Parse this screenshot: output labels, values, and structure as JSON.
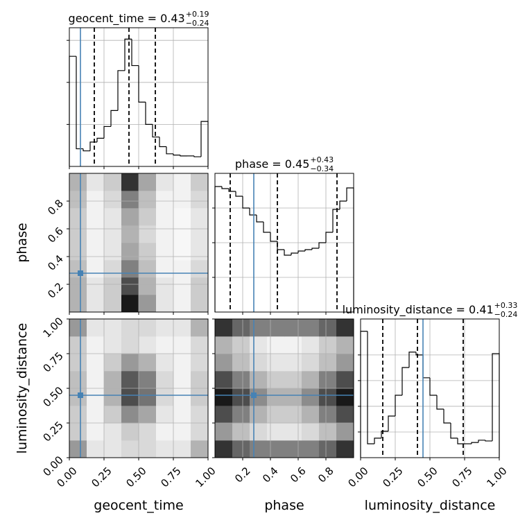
{
  "chart_data": {
    "type": "corner",
    "truth_color": "#4682b4",
    "grid": true,
    "parameters": [
      {
        "name": "geocent_time",
        "title": "geocent_time = 0.43",
        "plus": "+0.19",
        "minus": "−0.24",
        "lim": [
          0,
          1
        ],
        "ticks": [
          {
            "value": 0,
            "label": "0.00"
          },
          {
            "value": 0.25,
            "label": "0.25"
          },
          {
            "value": 0.5,
            "label": "0.50"
          },
          {
            "value": 0.75,
            "label": "0.75"
          },
          {
            "value": 1,
            "label": "1.00"
          }
        ],
        "truth": 0.08,
        "quantiles": [
          0.18,
          0.43,
          0.62
        ],
        "hist": {
          "values": [
            2.62,
            0.42,
            0.37,
            0.58,
            0.67,
            0.95,
            1.33,
            2.28,
            3.03,
            2.4,
            1.53,
            1.0,
            0.7,
            0.47,
            0.3,
            0.27,
            0.25,
            0.25,
            0.23,
            1.07
          ],
          "ylim": [
            0,
            3.3
          ],
          "yticks": [
            1,
            2,
            3
          ]
        }
      },
      {
        "name": "phase",
        "title": "phase = 0.45",
        "plus": "+0.43",
        "minus": "−0.34",
        "lim": [
          0,
          1
        ],
        "ticks": [
          0.2,
          0.4,
          0.6,
          0.8
        ],
        "truth": 0.28,
        "quantiles": [
          0.11,
          0.45,
          0.88
        ],
        "hist": {
          "values": [
            3.62,
            3.56,
            3.48,
            3.34,
            3.0,
            2.8,
            2.6,
            2.3,
            2.04,
            1.8,
            1.64,
            1.7,
            1.76,
            1.8,
            1.84,
            2.0,
            2.3,
            2.96,
            3.2,
            3.58
          ],
          "ylim": [
            0,
            4.0
          ],
          "yticks": [
            1,
            2,
            3
          ]
        }
      },
      {
        "name": "luminosity_distance",
        "title": "luminosity_distance = 0.41",
        "plus": "+0.33",
        "minus": "−0.24",
        "lim": [
          0,
          1
        ],
        "ticks": [
          {
            "value": 0,
            "label": "0.00"
          },
          {
            "value": 0.25,
            "label": "0.25"
          },
          {
            "value": 0.5,
            "label": "0.50"
          },
          {
            "value": 0.75,
            "label": "0.75"
          },
          {
            "value": 1,
            "label": "1.00"
          }
        ],
        "truth": 0.45,
        "quantiles": [
          0.16,
          0.41,
          0.74
        ],
        "hist": {
          "values": [
            4.92,
            0.54,
            0.76,
            1.03,
            1.62,
            2.43,
            3.51,
            4.11,
            4.0,
            3.11,
            2.43,
            1.89,
            1.35,
            0.76,
            0.54,
            0.54,
            0.59,
            0.68,
            0.65,
            4.05
          ],
          "ylim": [
            0,
            5.4
          ],
          "yticks": [
            1,
            2,
            3,
            4
          ]
        }
      }
    ],
    "pairs": [
      {
        "density": [
          [
            0.3,
            0.1,
            0.2,
            0.9,
            0.4,
            0.1,
            0.05,
            0.2
          ],
          [
            0.3,
            0.1,
            0.2,
            0.7,
            0.3,
            0.1,
            0.05,
            0.2
          ],
          [
            0.25,
            0.05,
            0.15,
            0.5,
            0.25,
            0.05,
            0.05,
            0.15
          ],
          [
            0.2,
            0.05,
            0.1,
            0.35,
            0.2,
            0.05,
            0.03,
            0.1
          ],
          [
            0.2,
            0.05,
            0.1,
            0.3,
            0.15,
            0.05,
            0.03,
            0.1
          ],
          [
            0.2,
            0.05,
            0.1,
            0.35,
            0.2,
            0.05,
            0.03,
            0.1
          ],
          [
            0.25,
            0.05,
            0.15,
            0.5,
            0.25,
            0.05,
            0.05,
            0.15
          ],
          [
            0.3,
            0.1,
            0.2,
            0.8,
            0.35,
            0.1,
            0.05,
            0.2
          ]
        ]
      },
      {
        "density": [
          [
            0.4,
            0.1,
            0.1,
            0.15,
            0.15,
            0.1,
            0.1,
            0.3
          ],
          [
            0.2,
            0.05,
            0.1,
            0.2,
            0.15,
            0.05,
            0.05,
            0.15
          ],
          [
            0.2,
            0.05,
            0.2,
            0.45,
            0.35,
            0.1,
            0.05,
            0.15
          ],
          [
            0.25,
            0.05,
            0.3,
            0.7,
            0.55,
            0.15,
            0.05,
            0.2
          ],
          [
            0.25,
            0.05,
            0.3,
            0.65,
            0.5,
            0.15,
            0.05,
            0.2
          ],
          [
            0.2,
            0.05,
            0.2,
            0.4,
            0.3,
            0.1,
            0.05,
            0.15
          ],
          [
            0.2,
            0.05,
            0.1,
            0.15,
            0.1,
            0.05,
            0.05,
            0.15
          ],
          [
            0.4,
            0.1,
            0.1,
            0.15,
            0.15,
            0.1,
            0.1,
            0.3
          ]
        ]
      },
      {
        "density": [
          [
            0.8,
            0.6,
            0.5,
            0.5,
            0.5,
            0.5,
            0.6,
            0.8
          ],
          [
            0.4,
            0.25,
            0.15,
            0.1,
            0.1,
            0.15,
            0.25,
            0.4
          ],
          [
            0.7,
            0.5,
            0.3,
            0.2,
            0.2,
            0.3,
            0.5,
            0.7
          ],
          [
            0.9,
            0.7,
            0.45,
            0.3,
            0.3,
            0.45,
            0.7,
            0.9
          ],
          [
            0.7,
            0.5,
            0.3,
            0.2,
            0.2,
            0.3,
            0.5,
            0.7
          ],
          [
            0.4,
            0.25,
            0.15,
            0.1,
            0.1,
            0.15,
            0.25,
            0.4
          ],
          [
            0.3,
            0.2,
            0.1,
            0.05,
            0.05,
            0.1,
            0.2,
            0.3
          ],
          [
            0.8,
            0.6,
            0.5,
            0.5,
            0.5,
            0.5,
            0.6,
            0.8
          ]
        ]
      }
    ]
  }
}
